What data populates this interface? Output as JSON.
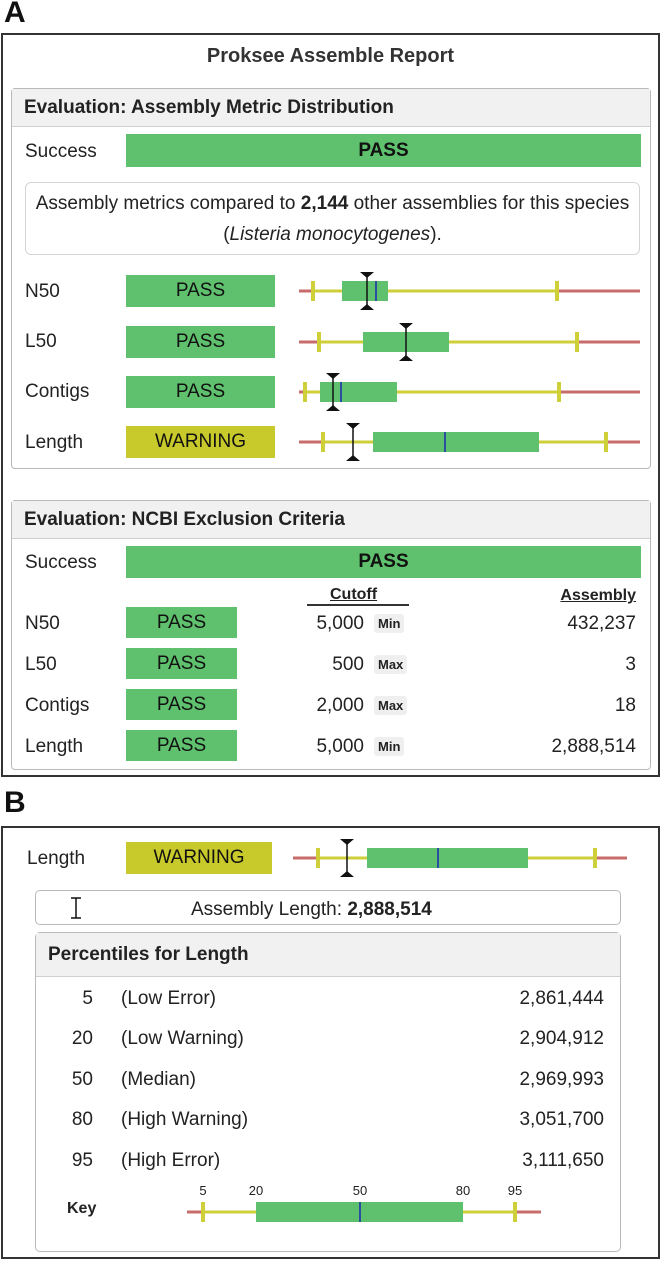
{
  "panel_a": {
    "letter": "A",
    "report_title": "Proksee Assemble Report",
    "distribution": {
      "heading": "Evaluation: Assembly Metric Distribution",
      "overall_label": "Success",
      "overall_status": "PASS",
      "note_prefix": "Assembly metrics compared to ",
      "note_count": "2,144",
      "note_middle": " other assemblies for this species (",
      "note_species": "Listeria monocytogenes",
      "note_suffix": ").",
      "rows": [
        {
          "label": "N50",
          "status": "PASS"
        },
        {
          "label": "L50",
          "status": "PASS"
        },
        {
          "label": "Contigs",
          "status": "PASS"
        },
        {
          "label": "Length",
          "status": "WARNING"
        }
      ]
    },
    "ncbi": {
      "heading": "Evaluation: NCBI Exclusion Criteria",
      "overall_label": "Success",
      "overall_status": "PASS",
      "cutoff_header": "Cutoff",
      "assembly_header": "Assembly",
      "rows": [
        {
          "label": "N50",
          "status": "PASS",
          "cutoff": "5,000",
          "type": "Min",
          "assembly": "432,237"
        },
        {
          "label": "L50",
          "status": "PASS",
          "cutoff": "500",
          "type": "Max",
          "assembly": "3"
        },
        {
          "label": "Contigs",
          "status": "PASS",
          "cutoff": "2,000",
          "type": "Max",
          "assembly": "18"
        },
        {
          "label": "Length",
          "status": "PASS",
          "cutoff": "5,000",
          "type": "Min",
          "assembly": "2,888,514"
        }
      ]
    }
  },
  "panel_b": {
    "letter": "B",
    "row_label": "Length",
    "row_status": "WARNING",
    "assembly_length_label": "Assembly Length: ",
    "assembly_length_value": "2,888,514",
    "percentiles_heading": "Percentiles for Length",
    "percentiles": [
      {
        "pct": "5",
        "desc": "(Low Error)",
        "value": "2,861,444"
      },
      {
        "pct": "20",
        "desc": "(Low Warning)",
        "value": "2,904,912"
      },
      {
        "pct": "50",
        "desc": "(Median)",
        "value": "2,969,993"
      },
      {
        "pct": "80",
        "desc": "(High Warning)",
        "value": "3,051,700"
      },
      {
        "pct": "95",
        "desc": "(High Error)",
        "value": "3,111,650"
      }
    ],
    "key_label": "Key",
    "key_ticks": [
      "5",
      "20",
      "50",
      "80",
      "95"
    ]
  },
  "colors": {
    "pass": "#5fc06d",
    "warning": "#c8c92a",
    "error_line": "#c86b6b",
    "warning_line": "#cfcf3a",
    "median_line": "#2b4fa0"
  },
  "icons": {
    "assembly_marker": "i-beam-marker-icon"
  }
}
